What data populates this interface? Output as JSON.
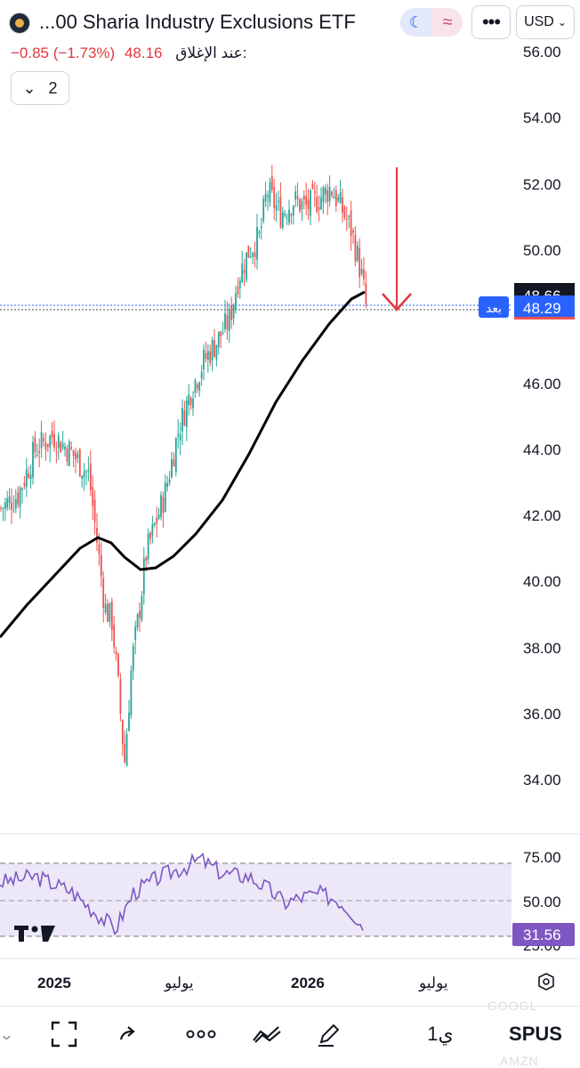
{
  "header": {
    "title": "...00 Sharia Industry Exclusions ETF",
    "theme_icons": [
      "moon-icon",
      "wave-icon"
    ],
    "more_label": "•••",
    "currency": "USD"
  },
  "quote": {
    "change": "−0.85 (−1.73%)",
    "price": "48.16",
    "close_label": "عند الإغلاق:"
  },
  "indicator_button": {
    "count": "2"
  },
  "price_axis": {
    "ticks": [
      "56.00",
      "54.00",
      "52.00",
      "50.00",
      "46.00",
      "44.00",
      "42.00",
      "40.00",
      "38.00",
      "36.00",
      "34.00"
    ],
    "hidden_tick": "48.66",
    "after_label": "بعد",
    "after_price": "48.29"
  },
  "rsi_axis": {
    "ticks": [
      "75.00",
      "50.00",
      "25.00"
    ],
    "value": "31.56"
  },
  "time_axis": {
    "labels": [
      "2025",
      "يوليو",
      "2026",
      "يوليو"
    ]
  },
  "toolbar": {
    "symbol": "SPUS",
    "interval": "1ي",
    "ghost_top": "GOOGL",
    "ghost_bottom": "AMZN"
  },
  "colors": {
    "up": "#26a69a",
    "down": "#ef5350",
    "accent_blue": "#2962ff",
    "rsi_line": "#7e57c2",
    "arrow": "#e0393e"
  }
}
